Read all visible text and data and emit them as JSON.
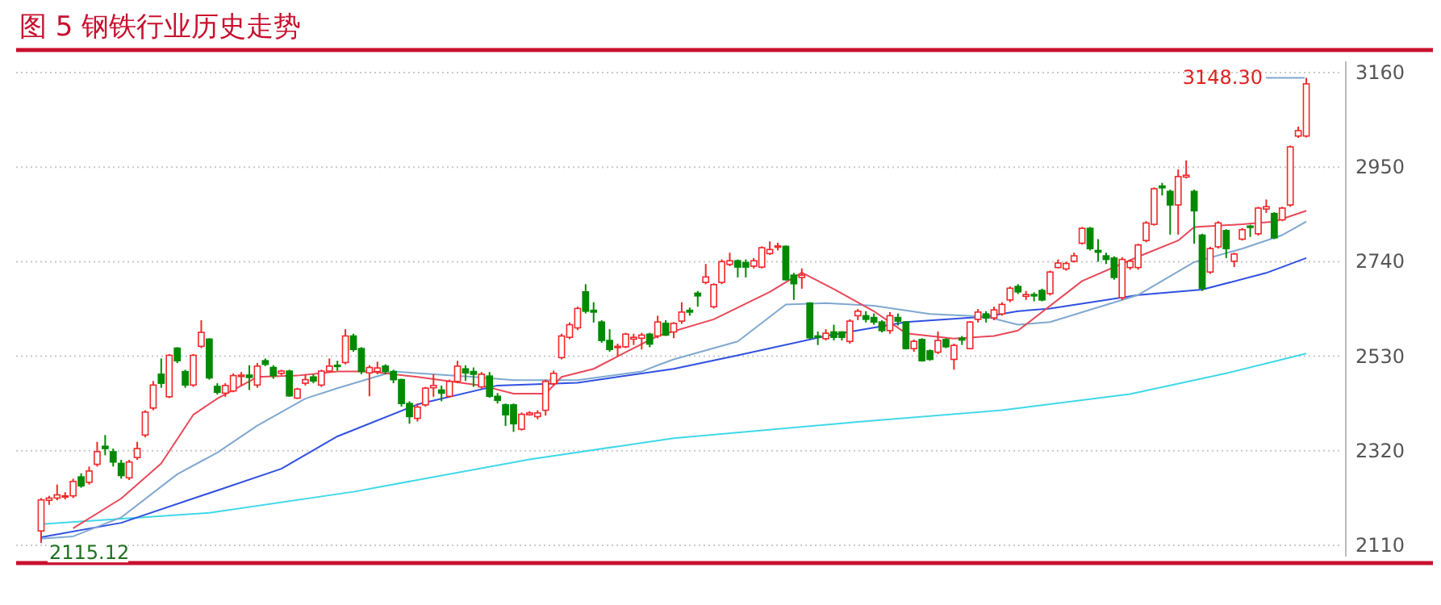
{
  "chart_data": {
    "type": "candlestick",
    "title": "图 5 钢铁行业历史走势",
    "categories": [
      null,
      null,
      null,
      null,
      null,
      null,
      null,
      null,
      null,
      null,
      null,
      null,
      null,
      null,
      null,
      null,
      null,
      null,
      null,
      null,
      null,
      null,
      null,
      null,
      null,
      null,
      null,
      null,
      null,
      null,
      null,
      null,
      null,
      null,
      null,
      null,
      null,
      null,
      null,
      null,
      null,
      null,
      null,
      null,
      null,
      null,
      null,
      null,
      null,
      null,
      null,
      null,
      null,
      null,
      null,
      null,
      null,
      null,
      null,
      null,
      null,
      null,
      null,
      null,
      null,
      null,
      null,
      null,
      null,
      null,
      null,
      null,
      null,
      null,
      null,
      null,
      null,
      null,
      null,
      null,
      null,
      null,
      null,
      null,
      null,
      null,
      null,
      null,
      null,
      null,
      null,
      null,
      null,
      null,
      null,
      null,
      null,
      null,
      null,
      null,
      null,
      null,
      null,
      null,
      null,
      null,
      null,
      null,
      null,
      null,
      null,
      null,
      null,
      null,
      null,
      null,
      null,
      null,
      null,
      null,
      null,
      null,
      null,
      null,
      null,
      null,
      null,
      null,
      null,
      null,
      null,
      null,
      null,
      null,
      null,
      null,
      null,
      null,
      null,
      null,
      null,
      null,
      null,
      null,
      null,
      null,
      null,
      null,
      null,
      null,
      null,
      null,
      null,
      null,
      null,
      null,
      null,
      null,
      null
    ],
    "ohlc": [
      [
        2142,
        2215,
        2115.12,
        2211
      ],
      [
        2210,
        2220,
        2200,
        2215
      ],
      [
        2215,
        2245,
        2210,
        2222
      ],
      [
        2218,
        2228,
        2212,
        2220
      ],
      [
        2220,
        2258,
        2215,
        2252
      ],
      [
        2262,
        2270,
        2238,
        2242
      ],
      [
        2250,
        2285,
        2245,
        2275
      ],
      [
        2290,
        2340,
        2285,
        2318
      ],
      [
        2330,
        2355,
        2310,
        2325
      ],
      [
        2318,
        2325,
        2285,
        2295
      ],
      [
        2292,
        2300,
        2258,
        2265
      ],
      [
        2260,
        2300,
        2255,
        2295
      ],
      [
        2305,
        2340,
        2300,
        2325
      ],
      [
        2355,
        2410,
        2350,
        2406
      ],
      [
        2415,
        2475,
        2410,
        2466
      ],
      [
        2490,
        2525,
        2460,
        2470
      ],
      [
        2440,
        2535,
        2437,
        2532
      ],
      [
        2548,
        2550,
        2515,
        2520
      ],
      [
        2496,
        2500,
        2460,
        2466
      ],
      [
        2466,
        2535,
        2462,
        2532
      ],
      [
        2552,
        2610,
        2548,
        2583
      ],
      [
        2568,
        2570,
        2478,
        2482
      ],
      [
        2463,
        2470,
        2445,
        2450
      ],
      [
        2448,
        2470,
        2440,
        2465
      ],
      [
        2453,
        2492,
        2450,
        2487
      ],
      [
        2485,
        2495,
        2465,
        2488
      ],
      [
        2488,
        2510,
        2455,
        2483
      ],
      [
        2466,
        2515,
        2460,
        2508
      ],
      [
        2520,
        2525,
        2508,
        2512
      ],
      [
        2505,
        2510,
        2480,
        2487
      ],
      [
        2492,
        2500,
        2488,
        2497
      ],
      [
        2497,
        2500,
        2440,
        2442
      ],
      [
        2437,
        2460,
        2435,
        2457
      ],
      [
        2470,
        2490,
        2465,
        2478
      ],
      [
        2484,
        2490,
        2470,
        2475
      ],
      [
        2466,
        2500,
        2462,
        2497
      ],
      [
        2497,
        2525,
        2495,
        2508
      ],
      [
        2510,
        2520,
        2498,
        2508
      ],
      [
        2516,
        2590,
        2512,
        2575
      ],
      [
        2575,
        2580,
        2540,
        2545
      ],
      [
        2547,
        2550,
        2490,
        2496
      ],
      [
        2493,
        2510,
        2441,
        2505
      ],
      [
        2496,
        2518,
        2490,
        2504
      ],
      [
        2508,
        2512,
        2490,
        2496
      ],
      [
        2496,
        2500,
        2470,
        2478
      ],
      [
        2478,
        2480,
        2418,
        2425
      ],
      [
        2425,
        2430,
        2380,
        2396
      ],
      [
        2392,
        2425,
        2385,
        2417
      ],
      [
        2422,
        2462,
        2418,
        2459
      ],
      [
        2460,
        2490,
        2440,
        2465
      ],
      [
        2455,
        2465,
        2430,
        2448
      ],
      [
        2441,
        2478,
        2438,
        2474
      ],
      [
        2474,
        2520,
        2470,
        2508
      ],
      [
        2502,
        2510,
        2475,
        2493
      ],
      [
        2496,
        2505,
        2462,
        2490
      ],
      [
        2462,
        2495,
        2458,
        2490
      ],
      [
        2486,
        2495,
        2438,
        2441
      ],
      [
        2441,
        2448,
        2425,
        2432
      ],
      [
        2422,
        2425,
        2375,
        2400
      ],
      [
        2422,
        2425,
        2362,
        2380
      ],
      [
        2368,
        2405,
        2365,
        2401
      ],
      [
        2400,
        2408,
        2398,
        2404
      ],
      [
        2396,
        2410,
        2390,
        2404
      ],
      [
        2410,
        2478,
        2398,
        2474
      ],
      [
        2469,
        2498,
        2465,
        2492
      ],
      [
        2527,
        2580,
        2523,
        2575
      ],
      [
        2572,
        2605,
        2568,
        2600
      ],
      [
        2593,
        2640,
        2588,
        2636
      ],
      [
        2673,
        2690,
        2625,
        2630
      ],
      [
        2632,
        2650,
        2605,
        2628
      ],
      [
        2606,
        2610,
        2560,
        2565
      ],
      [
        2565,
        2590,
        2540,
        2545
      ],
      [
        2550,
        2558,
        2530,
        2552
      ],
      [
        2551,
        2582,
        2548,
        2579
      ],
      [
        2568,
        2580,
        2555,
        2572
      ],
      [
        2570,
        2582,
        2545,
        2577
      ],
      [
        2579,
        2582,
        2550,
        2557
      ],
      [
        2575,
        2620,
        2570,
        2606
      ],
      [
        2603,
        2610,
        2575,
        2577
      ],
      [
        2584,
        2606,
        2570,
        2603
      ],
      [
        2608,
        2650,
        2602,
        2628
      ],
      [
        2632,
        2638,
        2620,
        2628
      ],
      [
        2670,
        2675,
        2640,
        2664
      ],
      [
        2694,
        2735,
        2690,
        2706
      ],
      [
        2640,
        2692,
        2636,
        2689
      ],
      [
        2694,
        2745,
        2690,
        2740
      ],
      [
        2734,
        2760,
        2730,
        2742
      ],
      [
        2742,
        2745,
        2705,
        2728
      ],
      [
        2738,
        2745,
        2705,
        2728
      ],
      [
        2730,
        2748,
        2725,
        2742
      ],
      [
        2728,
        2774,
        2725,
        2771
      ],
      [
        2758,
        2785,
        2755,
        2767
      ],
      [
        2772,
        2782,
        2765,
        2775
      ],
      [
        2774,
        2776,
        2698,
        2700
      ],
      [
        2710,
        2715,
        2655,
        2691
      ],
      [
        2705,
        2725,
        2680,
        2710
      ],
      [
        2648,
        2650,
        2568,
        2571
      ],
      [
        2575,
        2585,
        2555,
        2573
      ],
      [
        2569,
        2590,
        2565,
        2581
      ],
      [
        2584,
        2600,
        2565,
        2572
      ],
      [
        2584,
        2585,
        2565,
        2572
      ],
      [
        2563,
        2612,
        2558,
        2608
      ],
      [
        2620,
        2635,
        2610,
        2630
      ],
      [
        2620,
        2630,
        2605,
        2612
      ],
      [
        2616,
        2625,
        2600,
        2606
      ],
      [
        2606,
        2610,
        2583,
        2587
      ],
      [
        2587,
        2628,
        2580,
        2620
      ],
      [
        2616,
        2625,
        2598,
        2608
      ],
      [
        2606,
        2608,
        2545,
        2547
      ],
      [
        2547,
        2567,
        2540,
        2563
      ],
      [
        2567,
        2570,
        2518,
        2520
      ],
      [
        2542,
        2545,
        2520,
        2523
      ],
      [
        2539,
        2585,
        2535,
        2565
      ],
      [
        2567,
        2570,
        2548,
        2551
      ],
      [
        2523,
        2558,
        2500,
        2554
      ],
      [
        2570,
        2575,
        2555,
        2566
      ],
      [
        2547,
        2608,
        2545,
        2606
      ],
      [
        2612,
        2635,
        2605,
        2628
      ],
      [
        2624,
        2630,
        2605,
        2615
      ],
      [
        2615,
        2640,
        2610,
        2633
      ],
      [
        2624,
        2650,
        2620,
        2645
      ],
      [
        2655,
        2685,
        2650,
        2681
      ],
      [
        2685,
        2690,
        2668,
        2673
      ],
      [
        2663,
        2675,
        2655,
        2667
      ],
      [
        2667,
        2672,
        2652,
        2664
      ],
      [
        2676,
        2680,
        2652,
        2655
      ],
      [
        2669,
        2720,
        2665,
        2717
      ],
      [
        2727,
        2745,
        2725,
        2737
      ],
      [
        2724,
        2740,
        2720,
        2736
      ],
      [
        2741,
        2760,
        2738,
        2753
      ],
      [
        2781,
        2817,
        2778,
        2814
      ],
      [
        2814,
        2817,
        2765,
        2769
      ],
      [
        2765,
        2790,
        2740,
        2761
      ],
      [
        2753,
        2760,
        2735,
        2745
      ],
      [
        2748,
        2752,
        2700,
        2705
      ],
      [
        2660,
        2750,
        2655,
        2745
      ],
      [
        2727,
        2745,
        2722,
        2741
      ],
      [
        2727,
        2780,
        2722,
        2777
      ],
      [
        2787,
        2830,
        2783,
        2826
      ],
      [
        2823,
        2905,
        2820,
        2902
      ],
      [
        2908,
        2915,
        2887,
        2904
      ],
      [
        2896,
        2900,
        2800,
        2866
      ],
      [
        2866,
        2945,
        2800,
        2929
      ],
      [
        2928,
        2965,
        2925,
        2932
      ],
      [
        2896,
        2900,
        2780,
        2853
      ],
      [
        2799,
        2802,
        2675,
        2681
      ],
      [
        2717,
        2773,
        2713,
        2769
      ],
      [
        2773,
        2830,
        2769,
        2826
      ],
      [
        2809,
        2812,
        2748,
        2769
      ],
      [
        2741,
        2760,
        2728,
        2757
      ],
      [
        2790,
        2815,
        2787,
        2811
      ],
      [
        2819,
        2822,
        2795,
        2817
      ],
      [
        2802,
        2862,
        2798,
        2859
      ],
      [
        2857,
        2878,
        2848,
        2862
      ],
      [
        2847,
        2850,
        2790,
        2793
      ],
      [
        2833,
        2862,
        2830,
        2859
      ],
      [
        2866,
        2998,
        2862,
        2995
      ],
      [
        3019,
        3040,
        3015,
        3031
      ],
      [
        3019,
        3148.3,
        3016,
        3135
      ]
    ],
    "series": [
      {
        "type": "line",
        "color": "#40d8e8",
        "values": [
          2157,
          null,
          null,
          null,
          null,
          null,
          null,
          null,
          null,
          null,
          null,
          null,
          null,
          null,
          null,
          null,
          null,
          null,
          null,
          null,
          null,
          2182,
          null,
          null,
          null,
          null,
          null,
          null,
          null,
          null,
          null,
          null,
          null,
          null,
          null,
          null,
          null,
          null,
          null,
          2229,
          null,
          null,
          null,
          null,
          null,
          null,
          null,
          null,
          null,
          null,
          null,
          null,
          null,
          null,
          null,
          null,
          null,
          null,
          null,
          null,
          null,
          2301,
          null,
          null,
          null,
          null,
          null,
          null,
          null,
          null,
          null,
          null,
          null,
          null,
          null,
          null,
          null,
          null,
          null,
          2348,
          null,
          null,
          null,
          null,
          null,
          null,
          null,
          null,
          null,
          null,
          null,
          null,
          null,
          null,
          null,
          null,
          null,
          null,
          null,
          null,
          null,
          null,
          2384,
          null,
          null,
          null,
          null,
          null,
          null,
          null,
          null,
          null,
          null,
          null,
          null,
          null,
          null,
          null,
          null,
          null,
          2410,
          null,
          null,
          null,
          null,
          null,
          null,
          null,
          null,
          null,
          null,
          null,
          null,
          null,
          null,
          null,
          2446,
          null,
          null,
          null,
          null,
          null,
          null,
          null,
          null,
          null,
          null,
          null,
          2492,
          null,
          null,
          null,
          null,
          null,
          null,
          null,
          null,
          null,
          2536
        ]
      },
      {
        "type": "line",
        "color": "#3050e0",
        "values": [
          2128,
          null,
          null,
          null,
          null,
          null,
          null,
          null,
          null,
          null,
          2160,
          null,
          null,
          null,
          null,
          null,
          null,
          null,
          null,
          null,
          null,
          null,
          2232,
          null,
          null,
          null,
          null,
          null,
          null,
          null,
          2280,
          null,
          null,
          null,
          null,
          null,
          null,
          2352,
          null,
          null,
          null,
          null,
          null,
          null,
          null,
          null,
          null,
          2423,
          null,
          null,
          null,
          null,
          null,
          null,
          null,
          null,
          null,
          2465,
          null,
          null,
          null,
          null,
          null,
          null,
          null,
          null,
          null,
          2471,
          null,
          null,
          null,
          null,
          null,
          null,
          null,
          null,
          null,
          null,
          null,
          2502,
          null,
          null,
          null,
          null,
          null,
          null,
          null,
          2532,
          null,
          null,
          null,
          null,
          null,
          null,
          null,
          null,
          null,
          null,
          2575,
          null,
          null,
          null,
          null,
          null,
          null,
          null,
          null,
          null,
          2606,
          null,
          null,
          null,
          null,
          null,
          null,
          null,
          null,
          null,
          2618,
          null,
          null,
          null,
          2630,
          null,
          null,
          null,
          2636,
          null,
          null,
          null,
          null,
          null,
          null,
          null,
          null,
          null,
          null,
          2666,
          null,
          null,
          null,
          null,
          null,
          null,
          null,
          2678,
          null,
          null,
          null,
          null,
          null,
          null,
          null,
          2715,
          null,
          null,
          null,
          null,
          2748
        ]
      },
      {
        "type": "line",
        "color": "#80a8d0",
        "values": [
          2125,
          null,
          null,
          null,
          2130,
          null,
          null,
          null,
          null,
          null,
          2172,
          null,
          null,
          null,
          null,
          null,
          null,
          2268,
          null,
          null,
          null,
          null,
          2316,
          null,
          null,
          null,
          null,
          2376,
          null,
          null,
          null,
          null,
          null,
          2436,
          null,
          null,
          null,
          2459,
          null,
          null,
          null,
          null,
          null,
          null,
          2496,
          null,
          null,
          null,
          null,
          null,
          null,
          null,
          null,
          null,
          2484,
          null,
          null,
          null,
          null,
          2477,
          null,
          null,
          null,
          null,
          null,
          null,
          null,
          2477,
          null,
          null,
          null,
          null,
          null,
          null,
          null,
          2496,
          null,
          2510,
          null,
          2523,
          null,
          null,
          null,
          null,
          null,
          null,
          null,
          2563,
          null,
          null,
          null,
          null,
          null,
          2645,
          null,
          null,
          null,
          null,
          2648,
          null,
          null,
          null,
          null,
          null,
          2642,
          null,
          null,
          null,
          null,
          null,
          null,
          2624,
          null,
          null,
          null,
          null,
          null,
          null,
          2618,
          null,
          null,
          null,
          2600,
          null,
          null,
          null,
          2606,
          null,
          null,
          null,
          null,
          null,
          null,
          null,
          null,
          null,
          null,
          2666,
          null,
          null,
          null,
          null,
          null,
          null,
          2739,
          null,
          null,
          null,
          null,
          null,
          2769,
          null,
          null,
          null,
          null,
          2799,
          null,
          null,
          2829
        ]
      },
      {
        "type": "line",
        "color": "#e84858",
        "values": [
          null,
          null,
          null,
          null,
          2148,
          null,
          null,
          null,
          null,
          null,
          2214,
          null,
          null,
          null,
          null,
          2292,
          null,
          null,
          null,
          2400,
          null,
          null,
          2436,
          null,
          null,
          null,
          null,
          2484,
          null,
          null,
          null,
          null,
          2487,
          null,
          null,
          null,
          null,
          2496,
          null,
          null,
          null,
          2496,
          null,
          null,
          null,
          null,
          null,
          2484,
          null,
          null,
          null,
          null,
          null,
          null,
          null,
          2465,
          null,
          null,
          null,
          2447,
          null,
          null,
          null,
          2447,
          null,
          2484,
          null,
          null,
          null,
          2502,
          null,
          null,
          null,
          2539,
          null,
          null,
          null,
          2575,
          null,
          null,
          null,
          null,
          null,
          null,
          2612,
          null,
          null,
          null,
          null,
          null,
          null,
          2673,
          null,
          null,
          null,
          2716,
          null,
          null,
          null,
          2679,
          null,
          null,
          null,
          null,
          2630,
          null,
          null,
          null,
          2581,
          null,
          null,
          null,
          null,
          null,
          2569,
          null,
          null,
          null,
          null,
          2575,
          null,
          null,
          2587,
          null,
          null,
          null,
          null,
          null,
          null,
          null,
          2697,
          null,
          null,
          null,
          null,
          null,
          null,
          2751,
          null,
          null,
          null,
          null,
          2787,
          null,
          2817,
          null,
          null,
          null,
          null,
          null,
          2823,
          null,
          null,
          null,
          2829,
          null,
          null,
          null,
          2853
        ]
      }
    ],
    "ylim": [
      2085,
      3185
    ],
    "yticks": [
      2110,
      2320,
      2530,
      2740,
      2950,
      3160
    ],
    "grid": "y",
    "annotations": [
      "3148.30",
      "2115.12"
    ]
  }
}
